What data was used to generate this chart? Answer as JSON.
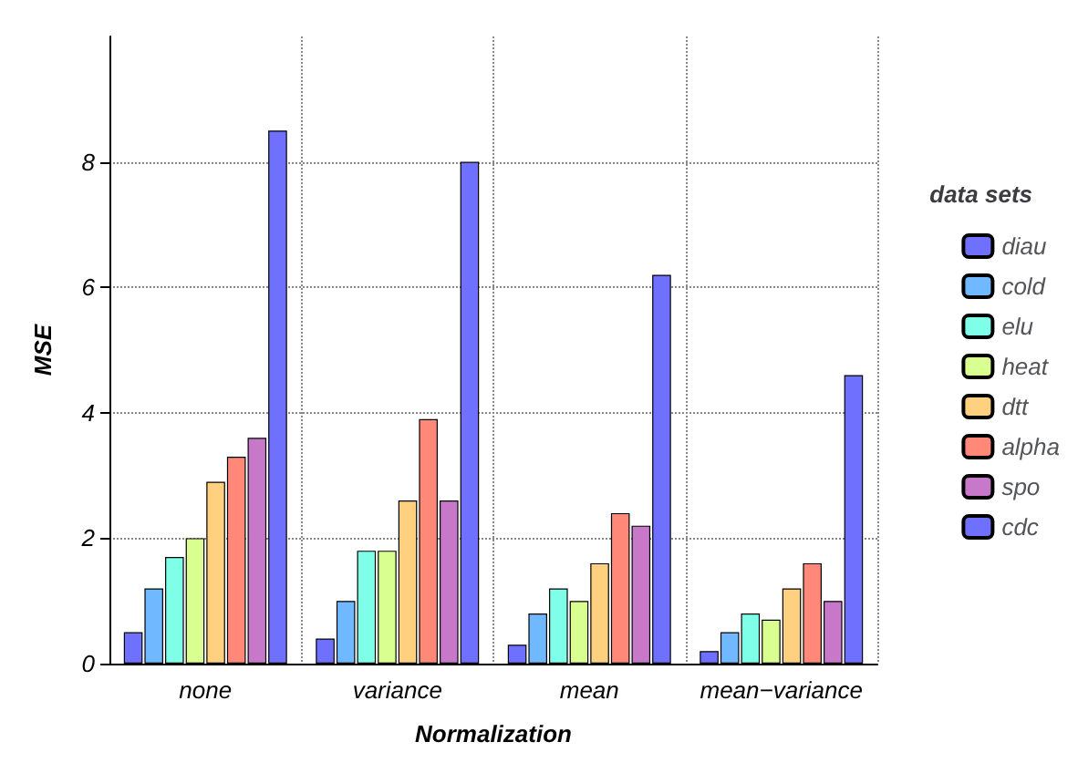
{
  "chart_data": {
    "type": "bar",
    "xlabel": "Normalization",
    "ylabel": "MSE",
    "legend_title": "data sets",
    "categories": [
      "none",
      "variance",
      "mean",
      "mean−variance"
    ],
    "series": [
      {
        "name": "diau",
        "color": "#7070ff",
        "values": [
          0.5,
          0.4,
          0.3,
          0.2
        ]
      },
      {
        "name": "cold",
        "color": "#70b8ff",
        "values": [
          1.2,
          1.0,
          0.8,
          0.5
        ]
      },
      {
        "name": "elu",
        "color": "#80ffe8",
        "values": [
          1.7,
          1.8,
          1.2,
          0.8
        ]
      },
      {
        "name": "heat",
        "color": "#d8ff90",
        "values": [
          2.0,
          1.8,
          1.0,
          0.7
        ]
      },
      {
        "name": "dtt",
        "color": "#ffd080",
        "values": [
          2.9,
          2.6,
          1.6,
          1.2
        ]
      },
      {
        "name": "alpha",
        "color": "#ff8878",
        "values": [
          3.3,
          3.9,
          2.4,
          1.6
        ]
      },
      {
        "name": "spo",
        "color": "#c878c8",
        "values": [
          3.6,
          2.6,
          2.2,
          1.0
        ]
      },
      {
        "name": "cdc",
        "color": "#7070ff",
        "values": [
          8.5,
          8.0,
          6.2,
          4.6
        ]
      }
    ],
    "ylim": [
      0,
      10
    ],
    "yticks": [
      0,
      2,
      4,
      6,
      8
    ],
    "grid": true,
    "legend": "right"
  }
}
